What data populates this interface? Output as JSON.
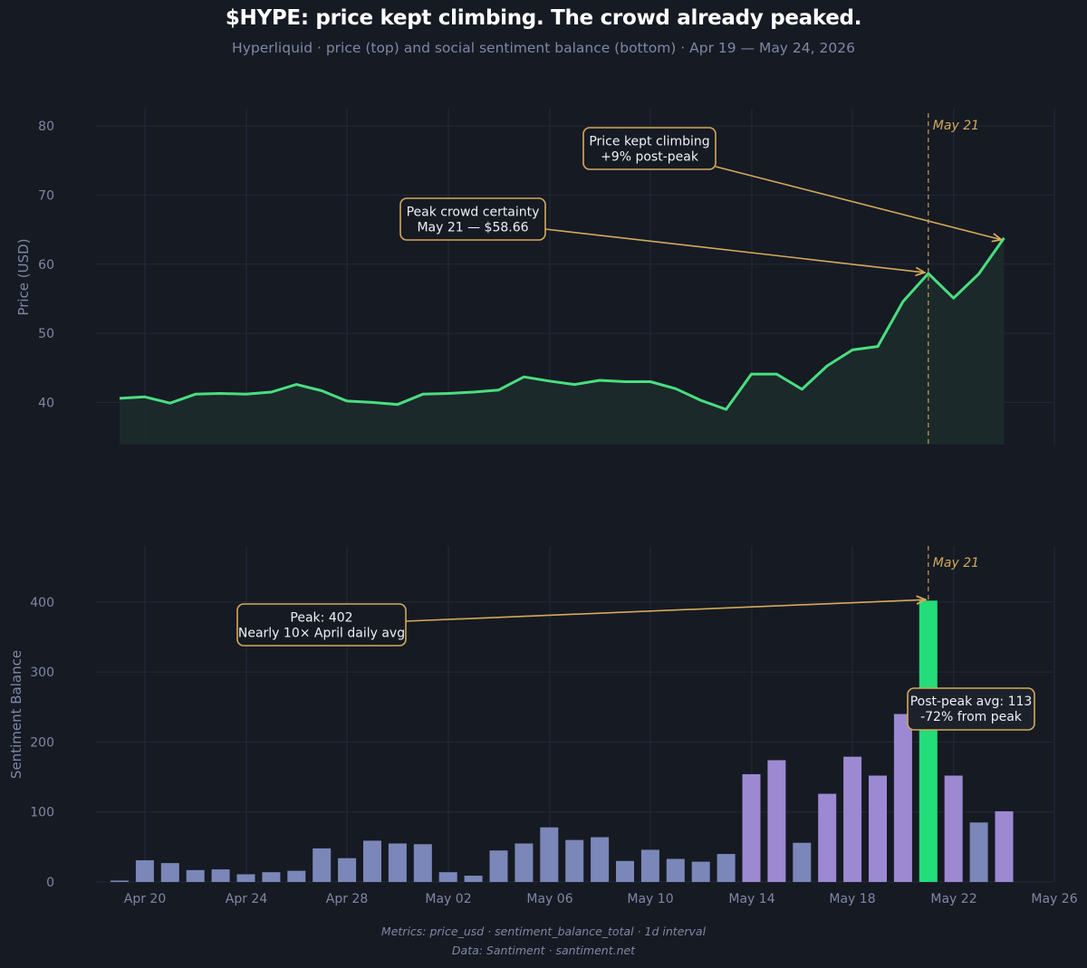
{
  "header": {
    "title": "$HYPE: price kept climbing. The crowd already peaked.",
    "subtitle": "Hyperliquid · price (top) and social sentiment balance (bottom) · Apr 19 — May 24, 2026"
  },
  "footer": {
    "metrics": "Metrics: price_usd · sentiment_balance_total · 1d interval",
    "source": "Data: Santiment · santiment.net"
  },
  "colors": {
    "background": "#161a23",
    "price_line": "#4ade80",
    "annotation": "#d4a95a",
    "bar_low": "#7b87b8",
    "bar_high": "#9c89d2",
    "bar_peak": "#22dd7a",
    "grid": "#232a38",
    "tick": "#7e88a5"
  },
  "chart_data": [
    {
      "type": "area",
      "ylabel": "Price (USD)",
      "ylim": [
        33.9,
        82.5
      ],
      "yticks": [
        40,
        50,
        60,
        70,
        80
      ],
      "grid": true,
      "x": [
        "Apr 19",
        "Apr 20",
        "Apr 21",
        "Apr 22",
        "Apr 23",
        "Apr 24",
        "Apr 25",
        "Apr 26",
        "Apr 27",
        "Apr 28",
        "Apr 29",
        "Apr 30",
        "May 01",
        "May 02",
        "May 03",
        "May 04",
        "May 05",
        "May 06",
        "May 07",
        "May 08",
        "May 09",
        "May 10",
        "May 11",
        "May 12",
        "May 13",
        "May 14",
        "May 15",
        "May 16",
        "May 17",
        "May 18",
        "May 19",
        "May 20",
        "May 21",
        "May 22",
        "May 23",
        "May 24"
      ],
      "values": [
        40.6,
        40.8,
        39.9,
        41.2,
        41.3,
        41.2,
        41.5,
        42.6,
        41.7,
        40.2,
        40.0,
        39.7,
        41.2,
        41.3,
        41.5,
        41.8,
        43.7,
        43.1,
        42.6,
        43.2,
        43.0,
        43.0,
        42.0,
        40.3,
        39.0,
        44.1,
        44.1,
        41.9,
        45.3,
        47.6,
        48.1,
        54.6,
        58.66,
        55.1,
        58.6,
        63.8
      ],
      "marker": {
        "x": "May 21",
        "label": "May 21"
      },
      "annotations": [
        {
          "text": [
            "Price kept climbing",
            "+9% post-peak"
          ],
          "target": "May 24"
        },
        {
          "text": [
            "Peak crowd certainty",
            "May 21 — $58.66"
          ],
          "target": "May 21"
        }
      ]
    },
    {
      "type": "bar",
      "ylabel": "Sentiment Balance",
      "ylim": [
        0,
        480
      ],
      "yticks": [
        0,
        100,
        200,
        300,
        400
      ],
      "grid": true,
      "xticks": [
        "Apr 20",
        "Apr 24",
        "Apr 28",
        "May 02",
        "May 06",
        "May 10",
        "May 14",
        "May 18",
        "May 22",
        "May 26"
      ],
      "x": [
        "Apr 19",
        "Apr 20",
        "Apr 21",
        "Apr 22",
        "Apr 23",
        "Apr 24",
        "Apr 25",
        "Apr 26",
        "Apr 27",
        "Apr 28",
        "Apr 29",
        "Apr 30",
        "May 01",
        "May 02",
        "May 03",
        "May 04",
        "May 05",
        "May 06",
        "May 07",
        "May 08",
        "May 09",
        "May 10",
        "May 11",
        "May 12",
        "May 13",
        "May 14",
        "May 15",
        "May 16",
        "May 17",
        "May 18",
        "May 19",
        "May 20",
        "May 21",
        "May 22",
        "May 23",
        "May 24"
      ],
      "values": [
        2,
        31,
        27,
        17,
        18,
        11,
        14,
        16,
        48,
        34,
        59,
        55,
        54,
        14,
        9,
        45,
        55,
        78,
        60,
        64,
        30,
        46,
        33,
        29,
        40,
        154,
        174,
        56,
        126,
        179,
        152,
        240,
        402,
        152,
        85,
        101
      ],
      "peak": {
        "x": "May 21",
        "value": 402
      },
      "marker": {
        "x": "May 21",
        "label": "May 21"
      },
      "annotations": [
        {
          "text": [
            "Peak: 402",
            "Nearly 10× April daily avg"
          ],
          "target": "May 21"
        },
        {
          "text": [
            "Post-peak avg: 113",
            "-72% from peak"
          ]
        }
      ]
    }
  ]
}
